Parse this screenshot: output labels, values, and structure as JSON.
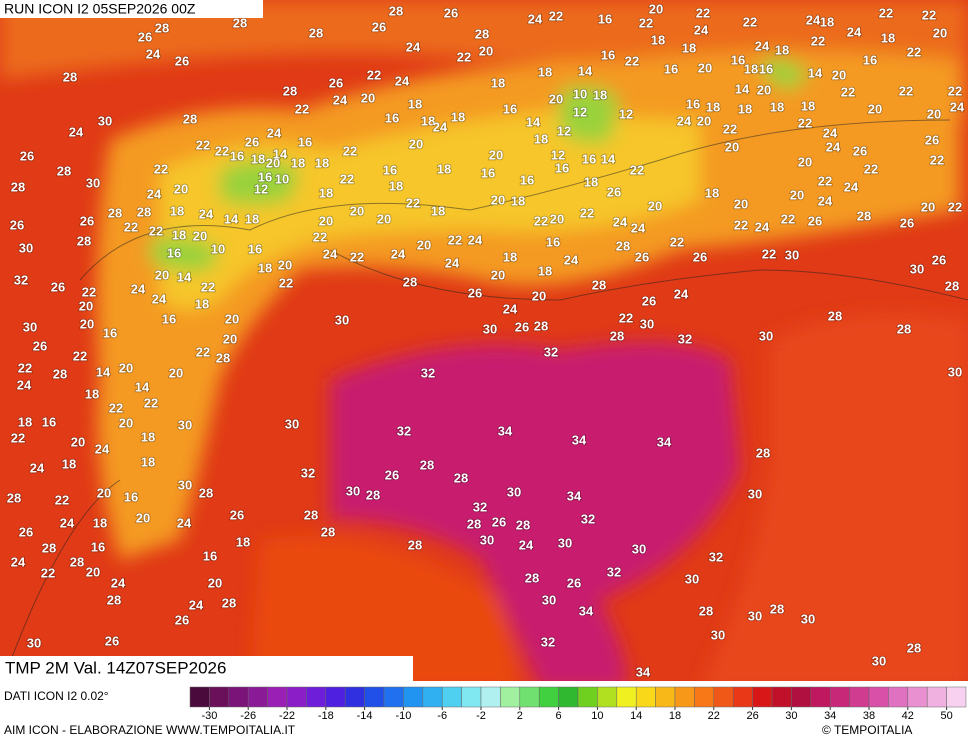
{
  "header": {
    "title": "RUN ICON I2 05SEP2026 00Z"
  },
  "map": {
    "variable": "TMP 2M Val. 14Z07SEP2026",
    "temperature_labels": [
      28,
      26,
      26,
      28,
      24,
      28,
      26,
      28,
      24,
      26,
      28,
      24,
      30,
      26,
      28,
      28,
      30,
      26,
      26,
      30,
      28,
      32,
      26,
      30,
      26,
      22,
      24,
      18,
      22,
      24,
      28,
      26,
      24,
      30,
      26,
      28,
      24,
      28,
      26,
      16,
      18,
      20,
      26,
      24,
      30,
      28,
      20,
      16,
      20,
      18,
      24,
      22,
      28,
      16,
      20,
      24,
      22,
      28,
      18,
      18,
      20,
      24,
      18,
      20,
      30,
      22,
      22,
      16,
      18,
      14,
      20,
      14,
      22,
      28,
      20,
      22,
      28,
      20,
      30,
      30,
      32,
      30,
      28,
      26,
      28,
      32,
      32,
      34,
      34,
      34,
      32,
      32,
      30,
      26,
      28,
      28,
      30,
      22,
      26,
      24,
      28,
      26,
      24,
      20,
      18,
      24,
      28,
      24,
      20,
      18,
      16,
      28,
      26,
      22,
      26,
      22,
      30,
      30,
      26,
      28,
      28,
      28,
      30,
      30,
      28,
      30,
      32,
      30,
      28,
      30,
      28,
      30,
      30,
      28,
      30,
      34,
      32,
      30,
      34,
      28,
      26,
      32,
      30,
      30,
      24,
      28,
      26,
      28,
      30,
      32,
      34,
      32,
      30,
      28,
      28,
      28,
      28,
      22,
      24,
      20,
      22,
      24,
      18,
      16,
      18,
      20,
      24,
      18,
      16,
      22,
      18,
      20,
      18,
      16,
      22,
      18,
      18,
      20,
      22,
      18,
      20,
      20,
      18,
      22,
      24,
      22,
      20,
      18,
      22,
      24,
      20,
      22,
      24,
      20,
      18,
      16,
      16,
      20,
      14,
      12,
      18,
      16,
      14,
      16,
      12,
      18,
      20,
      22,
      22,
      24,
      20,
      22,
      26,
      24,
      18,
      14,
      16,
      22,
      16,
      20,
      16,
      16,
      14,
      20,
      22,
      16,
      20,
      22,
      22,
      24,
      20,
      26,
      22,
      20,
      22,
      26,
      28,
      26,
      22,
      24,
      22,
      20,
      24,
      20,
      18,
      20,
      22,
      24,
      22,
      26,
      24,
      24,
      22,
      18,
      20,
      18,
      22,
      24,
      18,
      22,
      24,
      18,
      24,
      22,
      18,
      22,
      20,
      22,
      16,
      20,
      22,
      24,
      18,
      18,
      22,
      24,
      22,
      28,
      20,
      22,
      18,
      16,
      20,
      10,
      18,
      12,
      12,
      16,
      18,
      24,
      20,
      20,
      22,
      18,
      14,
      18,
      26,
      28,
      28,
      22,
      22,
      26,
      24,
      14,
      16,
      16,
      10,
      12,
      18,
      22,
      20,
      24,
      28,
      18,
      24,
      14,
      18,
      22,
      18,
      20,
      10,
      16,
      16,
      14,
      20,
      22,
      28,
      22,
      24,
      18,
      16,
      20,
      24,
      22,
      20,
      16,
      20
    ]
  },
  "colorbar": {
    "colors": [
      "#4a0a3c",
      "#6a0f5a",
      "#7a1478",
      "#8a1a96",
      "#9a1fb4",
      "#8c1ec8",
      "#6e1ed8",
      "#5020e0",
      "#3030e0",
      "#2050e8",
      "#2070f0",
      "#2094f0",
      "#30b0f0",
      "#50d0f0",
      "#80e8f0",
      "#b0f0f0",
      "#a0f0a0",
      "#70e070",
      "#40d040",
      "#30b830",
      "#70d020",
      "#b0e020",
      "#f0f020",
      "#f8d818",
      "#f8b818",
      "#f89818",
      "#f87818",
      "#f05818",
      "#e83818",
      "#d81818",
      "#c0102a",
      "#b01040",
      "#c01860",
      "#c82878",
      "#d03c90",
      "#d850a8",
      "#e070c0",
      "#e890d0",
      "#f0b0e0",
      "#f8d0f0"
    ],
    "labels": [
      -30,
      -26,
      -22,
      -18,
      -14,
      -10,
      -6,
      -2,
      2,
      6,
      10,
      14,
      18,
      22,
      26,
      30,
      34,
      38,
      42,
      50
    ]
  },
  "footer": {
    "source": "DATI ICON I2 0.02°",
    "credit": "AIM ICON - ELABORAZIONE WWW.TEMPOITALIA.IT",
    "copyright": "© TEMPOITALIA"
  }
}
